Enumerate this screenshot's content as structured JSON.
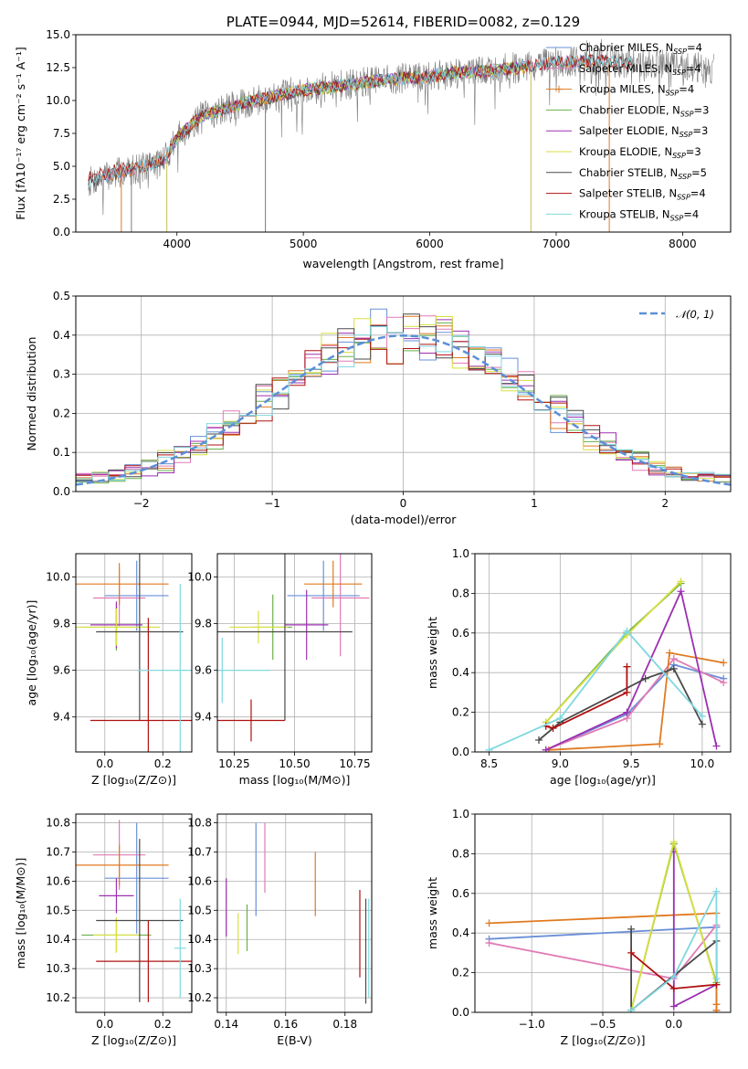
{
  "colors": {
    "chabrier_miles": "#6a8fd8",
    "salpeter_miles": "#e07bb5",
    "kroupa_miles": "#e07a20",
    "chabrier_elodie": "#6ab04c",
    "salpeter_elodie": "#9b30b0",
    "kroupa_elodie": "#d8df40",
    "chabrier_stelib": "#4a4a4a",
    "salpeter_stelib": "#b01010",
    "kroupa_stelib": "#80d8e0",
    "normal_curve": "#5b8fd8"
  },
  "chart_data": [
    {
      "id": "spectrum",
      "type": "line",
      "title": "PLATE=0944, MJD=52614, FIBERID=0082, z=0.129",
      "xlabel": "wavelength [Angstrom, rest frame]",
      "ylabel": "Flux [fλ10⁻¹⁷ erg cm⁻² s⁻¹ A⁻¹]",
      "xlim": [
        3200,
        8380
      ],
      "ylim": [
        0,
        15
      ],
      "xticks": [
        "4000",
        "5000",
        "6000",
        "7000",
        "8000"
      ],
      "yticks": [
        "0.0",
        "2.5",
        "5.0",
        "7.5",
        "10.0",
        "12.5",
        "15.0"
      ],
      "continuum": [
        [
          3300,
          3.8
        ],
        [
          3500,
          4.4
        ],
        [
          3700,
          4.9
        ],
        [
          3900,
          5.5
        ],
        [
          4000,
          7.2
        ],
        [
          4200,
          8.8
        ],
        [
          4500,
          9.7
        ],
        [
          4800,
          10.4
        ],
        [
          5000,
          10.8
        ],
        [
          5200,
          11.0
        ],
        [
          5500,
          11.4
        ],
        [
          5800,
          11.7
        ],
        [
          6000,
          11.8
        ],
        [
          6200,
          12.1
        ],
        [
          6500,
          12.3
        ],
        [
          6800,
          12.6
        ],
        [
          7000,
          12.9
        ],
        [
          7300,
          13.0
        ],
        [
          7500,
          12.9
        ],
        [
          7800,
          12.8
        ],
        [
          8000,
          12.6
        ],
        [
          8200,
          12.4
        ]
      ],
      "series": [
        {
          "key": "chabrier_miles",
          "name": "Chabrier MILES, N_SSP=4"
        },
        {
          "key": "salpeter_miles",
          "name": "Salpeter MILES, N_SSP=4"
        },
        {
          "key": "kroupa_miles",
          "name": "Kroupa MILES, N_SSP=4"
        },
        {
          "key": "chabrier_elodie",
          "name": "Chabrier ELODIE, N_SSP=3"
        },
        {
          "key": "salpeter_elodie",
          "name": "Salpeter ELODIE, N_SSP=3"
        },
        {
          "key": "kroupa_elodie",
          "name": "Kroupa ELODIE, N_SSP=3"
        },
        {
          "key": "chabrier_stelib",
          "name": "Chabrier STELIB, N_SSP=5"
        },
        {
          "key": "salpeter_stelib",
          "name": "Salpeter STELIB, N_SSP=4"
        },
        {
          "key": "kroupa_stelib",
          "name": "Kroupa STELIB, N_SSP=4"
        }
      ],
      "legend": "upper right"
    },
    {
      "id": "residuals",
      "type": "line",
      "xlabel": "(data-model)/error",
      "ylabel": "Normed distribution",
      "xlim": [
        -2.5,
        2.5
      ],
      "ylim": [
        0,
        0.5
      ],
      "xticks": [
        "−2",
        "−1",
        "0",
        "1",
        "2"
      ],
      "yticks": [
        "0.0",
        "0.1",
        "0.2",
        "0.3",
        "0.4",
        "0.5"
      ],
      "bins": 40,
      "legend_label": "𝒩(0, 1)",
      "legend": "upper right"
    },
    {
      "id": "age_vs_Z",
      "type": "scatter",
      "xlabel": "Z [log₁₀(Z/Z⊙)]",
      "ylabel": "age  [log₁₀(age/yr)]",
      "xlim": [
        -0.1,
        0.3
      ],
      "ylim": [
        9.25,
        10.1
      ],
      "xticks": [
        "0.0",
        "0.2"
      ],
      "xtickvals": [
        0.0,
        0.2
      ],
      "yticks": [
        "9.4",
        "9.6",
        "9.8",
        "10.0"
      ],
      "ytickvals": [
        9.4,
        9.6,
        9.8,
        10.0
      ],
      "points": [
        {
          "key": "chabrier_miles",
          "x": 0.11,
          "y": 9.92,
          "xerr": 0.11,
          "yerr": 0.15
        },
        {
          "key": "salpeter_miles",
          "x": 0.05,
          "y": 9.91,
          "xerr": 0.09,
          "yerr": 0.12
        },
        {
          "key": "kroupa_miles",
          "x": 0.05,
          "y": 9.97,
          "xerr": 0.17,
          "yerr": 0.09
        },
        {
          "key": "chabrier_elodie",
          "x": 0.04,
          "y": 9.785,
          "xerr": 0.12,
          "yerr": 0.1
        },
        {
          "key": "salpeter_elodie",
          "x": 0.04,
          "y": 9.795,
          "xerr": 0.09,
          "yerr": 0.1
        },
        {
          "key": "kroupa_elodie",
          "x": 0.04,
          "y": 9.785,
          "xerr": 0.15,
          "yerr": 0.08
        },
        {
          "key": "chabrier_stelib",
          "x": 0.12,
          "y": 9.765,
          "xerr": 0.15,
          "yerr": 0.38
        },
        {
          "key": "salpeter_stelib",
          "x": 0.15,
          "y": 9.385,
          "xerr": 0.2,
          "yerr": 0.44
        },
        {
          "key": "kroupa_stelib",
          "x": 0.26,
          "y": 9.6,
          "xerr": 0.15,
          "yerr": 0.37
        }
      ]
    },
    {
      "id": "age_vs_mass",
      "type": "scatter",
      "xlabel": "mass [log₁₀(M/M⊙)]",
      "ylabel": "",
      "xlim": [
        10.18,
        10.82
      ],
      "ylim": [
        9.25,
        10.1
      ],
      "xticks": [
        "10.25",
        "10.50",
        "10.75"
      ],
      "xtickvals": [
        10.25,
        10.5,
        10.75
      ],
      "yticks": [
        "9.4",
        "9.6",
        "9.8",
        "10.0"
      ],
      "ytickvals": [
        9.4,
        9.6,
        9.8,
        10.0
      ],
      "points": [
        {
          "key": "chabrier_miles",
          "x": 10.62,
          "y": 9.92,
          "xerr": 0.15,
          "yerr": 0.15
        },
        {
          "key": "salpeter_miles",
          "x": 10.69,
          "y": 9.91,
          "xerr": 0.12,
          "yerr": 0.25
        },
        {
          "key": "kroupa_miles",
          "x": 10.66,
          "y": 9.97,
          "xerr": 0.12,
          "yerr": 0.1
        },
        {
          "key": "chabrier_elodie",
          "x": 10.41,
          "y": 9.785,
          "xerr": 0.08,
          "yerr": 0.14
        },
        {
          "key": "salpeter_elodie",
          "x": 10.55,
          "y": 9.795,
          "xerr": 0.09,
          "yerr": 0.15
        },
        {
          "key": "kroupa_elodie",
          "x": 10.35,
          "y": 9.785,
          "xerr": 0.12,
          "yerr": 0.07
        },
        {
          "key": "chabrier_stelib",
          "x": 10.46,
          "y": 9.765,
          "xerr": 0.28,
          "yerr": 0.38
        },
        {
          "key": "salpeter_stelib",
          "x": 10.32,
          "y": 9.385,
          "xerr": 0.14,
          "yerr": 0.09
        },
        {
          "key": "kroupa_stelib",
          "x": 10.2,
          "y": 9.6,
          "xerr": 0.2,
          "yerr": 0.14
        }
      ]
    },
    {
      "id": "mass_weight_vs_age",
      "type": "line",
      "xlabel": "age  [log₁₀(age/yr)]",
      "ylabel": "mass weight",
      "xlim": [
        8.4,
        10.2
      ],
      "ylim": [
        0,
        1
      ],
      "xticks": [
        "8.5",
        "9.0",
        "9.5",
        "10.0"
      ],
      "xtickvals": [
        8.5,
        9.0,
        9.5,
        10.0
      ],
      "yticks": [
        "0.0",
        "0.2",
        "0.4",
        "0.6",
        "0.8",
        "1.0"
      ],
      "ytickvals": [
        0,
        0.2,
        0.4,
        0.6,
        0.8,
        1.0
      ],
      "series": [
        {
          "key": "chabrier_miles",
          "x": [
            8.9,
            9.47,
            9.8,
            10.15
          ],
          "y": [
            0.01,
            0.19,
            0.44,
            0.37
          ]
        },
        {
          "key": "salpeter_miles",
          "x": [
            8.9,
            9.47,
            9.8,
            10.15
          ],
          "y": [
            0.01,
            0.17,
            0.47,
            0.35
          ]
        },
        {
          "key": "kroupa_miles",
          "x": [
            8.92,
            9.7,
            9.77,
            10.15
          ],
          "y": [
            0.01,
            0.04,
            0.5,
            0.45
          ]
        },
        {
          "key": "chabrier_elodie",
          "x": [
            8.9,
            9.47,
            9.85
          ],
          "y": [
            0.15,
            0.6,
            0.85
          ]
        },
        {
          "key": "salpeter_elodie",
          "x": [
            8.9,
            9.47,
            9.85,
            10.1
          ],
          "y": [
            0.01,
            0.2,
            0.81,
            0.03
          ]
        },
        {
          "key": "kroupa_elodie",
          "x": [
            8.9,
            9.47,
            9.85
          ],
          "y": [
            0.15,
            0.59,
            0.86
          ]
        },
        {
          "key": "chabrier_stelib",
          "x": [
            8.85,
            9.0,
            9.6,
            9.8,
            10.0
          ],
          "y": [
            0.06,
            0.15,
            0.37,
            0.42,
            0.14
          ]
        },
        {
          "key": "salpeter_stelib",
          "x": [
            8.9,
            8.95,
            9.47,
            9.47
          ],
          "y": [
            0.13,
            0.12,
            0.3,
            0.43
          ]
        },
        {
          "key": "kroupa_stelib",
          "x": [
            8.5,
            9.0,
            9.47,
            10.0
          ],
          "y": [
            0.01,
            0.17,
            0.61,
            0.18
          ]
        }
      ]
    },
    {
      "id": "mass_vs_Z",
      "type": "scatter",
      "xlabel": "Z [log₁₀(Z/Z⊙)]",
      "ylabel": "mass [log₁₀(M/M⊙)]",
      "xlim": [
        -0.1,
        0.3
      ],
      "ylim": [
        10.15,
        10.83
      ],
      "xticks": [
        "0.0",
        "0.2"
      ],
      "xtickvals": [
        0.0,
        0.2
      ],
      "yticks": [
        "10.2",
        "10.3",
        "10.4",
        "10.5",
        "10.6",
        "10.7",
        "10.8"
      ],
      "ytickvals": [
        10.2,
        10.3,
        10.4,
        10.5,
        10.6,
        10.7,
        10.8
      ],
      "points": [
        {
          "key": "chabrier_miles",
          "x": 0.11,
          "y": 10.61,
          "xerr": 0.11,
          "yerr": 0.19
        },
        {
          "key": "salpeter_miles",
          "x": 0.05,
          "y": 10.69,
          "xerr": 0.09,
          "yerr": 0.12
        },
        {
          "key": "kroupa_miles",
          "x": 0.05,
          "y": 10.655,
          "xerr": 0.17,
          "yerr": 0.07
        },
        {
          "key": "chabrier_elodie",
          "x": 0.04,
          "y": 10.415,
          "xerr": 0.12,
          "yerr": 0.06
        },
        {
          "key": "salpeter_elodie",
          "x": 0.04,
          "y": 10.55,
          "xerr": 0.06,
          "yerr": 0.06
        },
        {
          "key": "kroupa_elodie",
          "x": 0.04,
          "y": 10.415,
          "xerr": 0.08,
          "yerr": 0.06
        },
        {
          "key": "chabrier_stelib",
          "x": 0.12,
          "y": 10.465,
          "xerr": 0.15,
          "yerr": 0.28
        },
        {
          "key": "salpeter_stelib",
          "x": 0.15,
          "y": 10.325,
          "xerr": 0.18,
          "yerr": 0.14
        },
        {
          "key": "kroupa_stelib",
          "x": 0.26,
          "y": 10.37,
          "xerr": 0.02,
          "yerr": 0.17
        }
      ]
    },
    {
      "id": "mass_vs_ebv",
      "type": "scatter",
      "xlabel": "E(B-V)",
      "ylabel": "",
      "xlim": [
        0.137,
        0.189
      ],
      "ylim": [
        10.15,
        10.83
      ],
      "xticks": [
        "0.14",
        "0.16",
        "0.18"
      ],
      "xtickvals": [
        0.14,
        0.16,
        0.18
      ],
      "yticks": [
        "10.2",
        "10.3",
        "10.4",
        "10.5",
        "10.6",
        "10.7",
        "10.8"
      ],
      "ytickvals": [
        10.2,
        10.3,
        10.4,
        10.5,
        10.6,
        10.7,
        10.8
      ],
      "points": [
        {
          "key": "chabrier_miles",
          "x": 0.15,
          "y": 10.64,
          "xerr": 0,
          "yerr": 0.16
        },
        {
          "key": "salpeter_miles",
          "x": 0.153,
          "y": 10.68,
          "xerr": 0,
          "yerr": 0.12
        },
        {
          "key": "kroupa_miles",
          "x": 0.17,
          "y": 10.59,
          "xerr": 0,
          "yerr": 0.11
        },
        {
          "key": "chabrier_elodie",
          "x": 0.147,
          "y": 10.44,
          "xerr": 0,
          "yerr": 0.08
        },
        {
          "key": "salpeter_elodie",
          "x": 0.14,
          "y": 10.51,
          "xerr": 0,
          "yerr": 0.1
        },
        {
          "key": "kroupa_elodie",
          "x": 0.144,
          "y": 10.42,
          "xerr": 0,
          "yerr": 0.07
        },
        {
          "key": "chabrier_stelib",
          "x": 0.187,
          "y": 10.36,
          "xerr": 0,
          "yerr": 0.18
        },
        {
          "key": "salpeter_stelib",
          "x": 0.185,
          "y": 10.42,
          "xerr": 0,
          "yerr": 0.15
        },
        {
          "key": "kroupa_stelib",
          "x": 0.188,
          "y": 10.37,
          "xerr": 0,
          "yerr": 0.17
        }
      ]
    },
    {
      "id": "mass_weight_vs_Z",
      "type": "line",
      "xlabel": "Z [log₁₀(Z/Z⊙)]",
      "ylabel": "mass weight",
      "xlim": [
        -1.4,
        0.4
      ],
      "ylim": [
        0,
        1
      ],
      "xticks": [
        "−1.0",
        "−0.5",
        "0.0"
      ],
      "xtickvals": [
        -1.0,
        -0.5,
        0.0
      ],
      "yticks": [
        "0.0",
        "0.2",
        "0.4",
        "0.6",
        "0.8",
        "1.0"
      ],
      "ytickvals": [
        0,
        0.2,
        0.4,
        0.6,
        0.8,
        1.0
      ],
      "series": [
        {
          "key": "chabrier_miles",
          "x": [
            -1.3,
            0.3,
            0.3
          ],
          "y": [
            0.37,
            0.43,
            0.01
          ]
        },
        {
          "key": "salpeter_miles",
          "x": [
            -1.3,
            0.0,
            0.3,
            0.3
          ],
          "y": [
            0.35,
            0.17,
            0.44,
            0.01
          ]
        },
        {
          "key": "kroupa_miles",
          "x": [
            -1.3,
            0.3,
            0.3,
            0.3
          ],
          "y": [
            0.45,
            0.5,
            0.04,
            0.01
          ]
        },
        {
          "key": "chabrier_elodie",
          "x": [
            -0.3,
            0.0,
            0.3
          ],
          "y": [
            0.01,
            0.85,
            0.15
          ]
        },
        {
          "key": "salpeter_elodie",
          "x": [
            0.0,
            0.0,
            0.3
          ],
          "y": [
            0.81,
            0.03,
            0.14
          ]
        },
        {
          "key": "kroupa_elodie",
          "x": [
            -0.3,
            0.0,
            0.3
          ],
          "y": [
            0.01,
            0.86,
            0.14
          ]
        },
        {
          "key": "chabrier_stelib",
          "x": [
            -0.3,
            -0.3,
            0.3,
            0.3
          ],
          "y": [
            0.42,
            0.01,
            0.36,
            0.14
          ]
        },
        {
          "key": "salpeter_stelib",
          "x": [
            -0.3,
            0.0,
            0.3
          ],
          "y": [
            0.3,
            0.12,
            0.14
          ]
        },
        {
          "key": "kroupa_stelib",
          "x": [
            -0.3,
            0.0,
            0.3,
            0.3
          ],
          "y": [
            0.01,
            0.18,
            0.61,
            0.17
          ]
        }
      ]
    }
  ]
}
